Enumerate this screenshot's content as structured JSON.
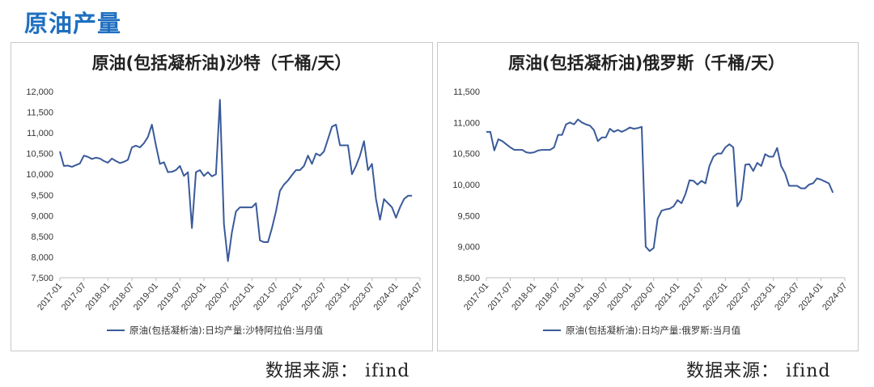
{
  "page": {
    "title": "原油产量",
    "source_left": "数据来源： ifind",
    "source_right": "数据来源： ifind"
  },
  "chart_data": [
    {
      "type": "line",
      "title": "原油(包括凝析油)沙特（千桶/天）",
      "legend": "原油(包括凝析油):日均产量:沙特阿拉伯:当月值",
      "legend_position": "bottom",
      "color": "#3a5a9a",
      "ylim": [
        7500,
        12000
      ],
      "yticks": [
        7500,
        8000,
        8500,
        9000,
        9500,
        10000,
        10500,
        11000,
        11500,
        12000
      ],
      "ytick_labels": [
        "7,500",
        "8,000",
        "8,500",
        "9,000",
        "9,500",
        "10,000",
        "10,500",
        "11,000",
        "11,500",
        "12,000"
      ],
      "xtick_labels": [
        "2017-01",
        "2017-07",
        "2018-01",
        "2018-07",
        "2019-01",
        "2019-07",
        "2020-01",
        "2020-07",
        "2021-01",
        "2021-07",
        "2022-01",
        "2022-07",
        "2023-01",
        "2023-07",
        "2024-01",
        "2024-07"
      ],
      "x_start": "2017-01",
      "values": [
        10550,
        10200,
        10210,
        10180,
        10220,
        10260,
        10450,
        10420,
        10370,
        10400,
        10380,
        10320,
        10280,
        10380,
        10320,
        10270,
        10300,
        10350,
        10650,
        10690,
        10650,
        10750,
        10900,
        11200,
        10700,
        10250,
        10290,
        10050,
        10060,
        10100,
        10200,
        9960,
        10050,
        8700,
        10050,
        10100,
        9960,
        10050,
        9950,
        10000,
        11800,
        8800,
        7900,
        8600,
        9100,
        9200,
        9200,
        9200,
        9200,
        9300,
        8400,
        8360,
        8360,
        8700,
        9100,
        9600,
        9750,
        9850,
        9980,
        10100,
        10100,
        10200,
        10450,
        10250,
        10500,
        10450,
        10550,
        10850,
        11150,
        11200,
        10700,
        10700,
        10700,
        10000,
        10200,
        10450,
        10800,
        10100,
        10250,
        9400,
        8900,
        9400,
        9300,
        9200,
        8950,
        9200,
        9400,
        9480,
        9480
      ]
    },
    {
      "type": "line",
      "title": "原油(包括凝析油)俄罗斯（千桶/天）",
      "legend": "原油(包括凝析油):日均产量:俄罗斯:当月值",
      "legend_position": "bottom",
      "color": "#3a5a9a",
      "ylim": [
        8500,
        11500
      ],
      "yticks": [
        8500,
        9000,
        9500,
        10000,
        10500,
        11000,
        11500
      ],
      "ytick_labels": [
        "8,500",
        "9,000",
        "9,500",
        "10,000",
        "10,500",
        "11,000",
        "11,500"
      ],
      "xtick_labels": [
        "2017-01",
        "2017-07",
        "2018-01",
        "2018-07",
        "2019-01",
        "2019-07",
        "2020-01",
        "2020-07",
        "2021-01",
        "2021-07",
        "2022-01",
        "2022-07",
        "2023-01",
        "2023-07",
        "2024-01",
        "2024-07"
      ],
      "x_start": "2017-01",
      "values": [
        10850,
        10850,
        10550,
        10730,
        10700,
        10650,
        10600,
        10560,
        10560,
        10560,
        10520,
        10510,
        10520,
        10550,
        10560,
        10560,
        10560,
        10600,
        10800,
        10800,
        10970,
        11000,
        10970,
        11050,
        11000,
        10970,
        10950,
        10880,
        10700,
        10760,
        10760,
        10900,
        10850,
        10880,
        10850,
        10880,
        10920,
        10900,
        10910,
        10930,
        9000,
        8930,
        8980,
        9450,
        9580,
        9600,
        9610,
        9650,
        9750,
        9700,
        9850,
        10070,
        10060,
        10000,
        10060,
        10020,
        10300,
        10450,
        10500,
        10500,
        10600,
        10650,
        10600,
        9650,
        9760,
        10320,
        10330,
        10220,
        10350,
        10300,
        10490,
        10450,
        10450,
        10590,
        10300,
        10180,
        9980,
        9980,
        9980,
        9940,
        9940,
        10000,
        10020,
        10100,
        10080,
        10050,
        10020,
        9870
      ]
    }
  ]
}
